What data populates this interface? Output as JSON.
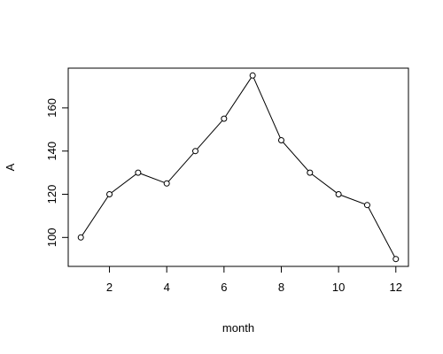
{
  "chart_data": {
    "type": "line",
    "xlabel": "month",
    "ylabel": "A",
    "x": [
      1,
      2,
      3,
      4,
      5,
      6,
      7,
      8,
      9,
      10,
      11,
      12
    ],
    "values": [
      100,
      120,
      130,
      125,
      140,
      155,
      175,
      145,
      130,
      120,
      115,
      90
    ],
    "color": "#000000",
    "xlim": [
      0.56,
      12.44
    ],
    "ylim": [
      86.6,
      178.4
    ],
    "xticks": [
      2,
      4,
      6,
      8,
      10,
      12
    ],
    "yticks": [
      100,
      120,
      140,
      160
    ]
  }
}
